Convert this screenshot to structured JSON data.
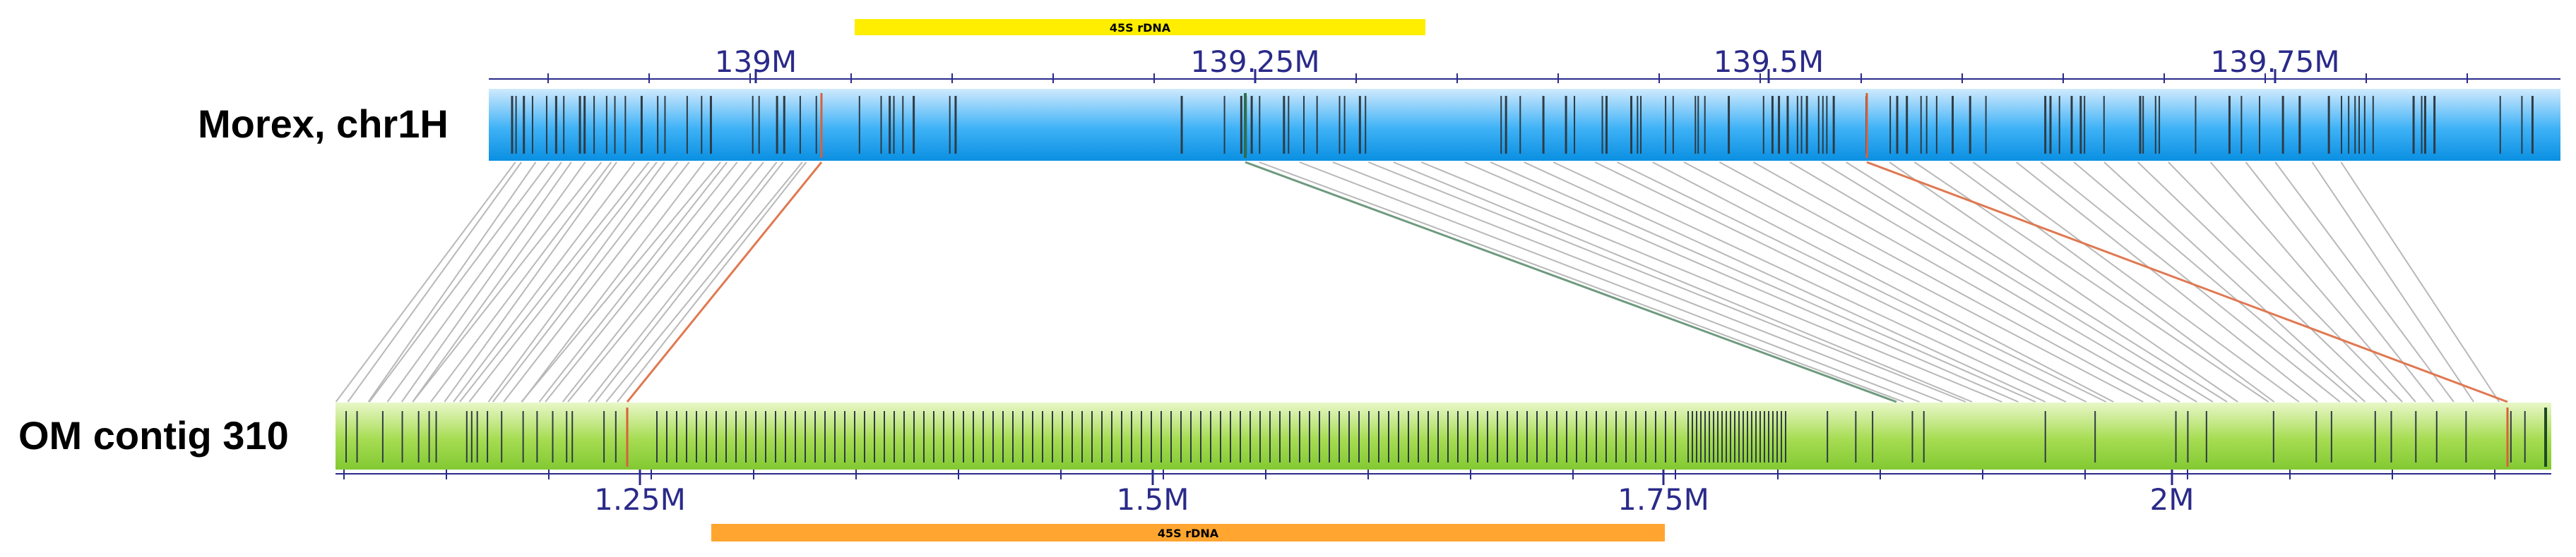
{
  "tracks": {
    "top": {
      "label": "Morex, chr1H",
      "color_top": "#cfeafd",
      "color_mid": "#3fb2f6",
      "color_bottom": "#0a8fe2",
      "ticks": [
        "139M",
        "139.25M",
        "139.5M",
        "139.75M"
      ],
      "annotation": {
        "label": "45S rDNA",
        "color": "#ffee00"
      }
    },
    "bottom": {
      "label": "OM contig 310",
      "color_top": "#e9f7c8",
      "color_mid": "#a6dc52",
      "color_bottom": "#82c932",
      "ticks": [
        "1.25M",
        "1.5M",
        "1.75M",
        "2M"
      ],
      "annotation": {
        "label": "45S rDNA",
        "color": "#ffa530"
      }
    }
  },
  "colors": {
    "tick_label": "#2a2a8a",
    "marker": "#2f3b45",
    "highlight_marker": "#d9603a",
    "connector": "#b8b8b8",
    "connector_green": "#6e9a7e",
    "connector_orange": "#e07850"
  }
}
